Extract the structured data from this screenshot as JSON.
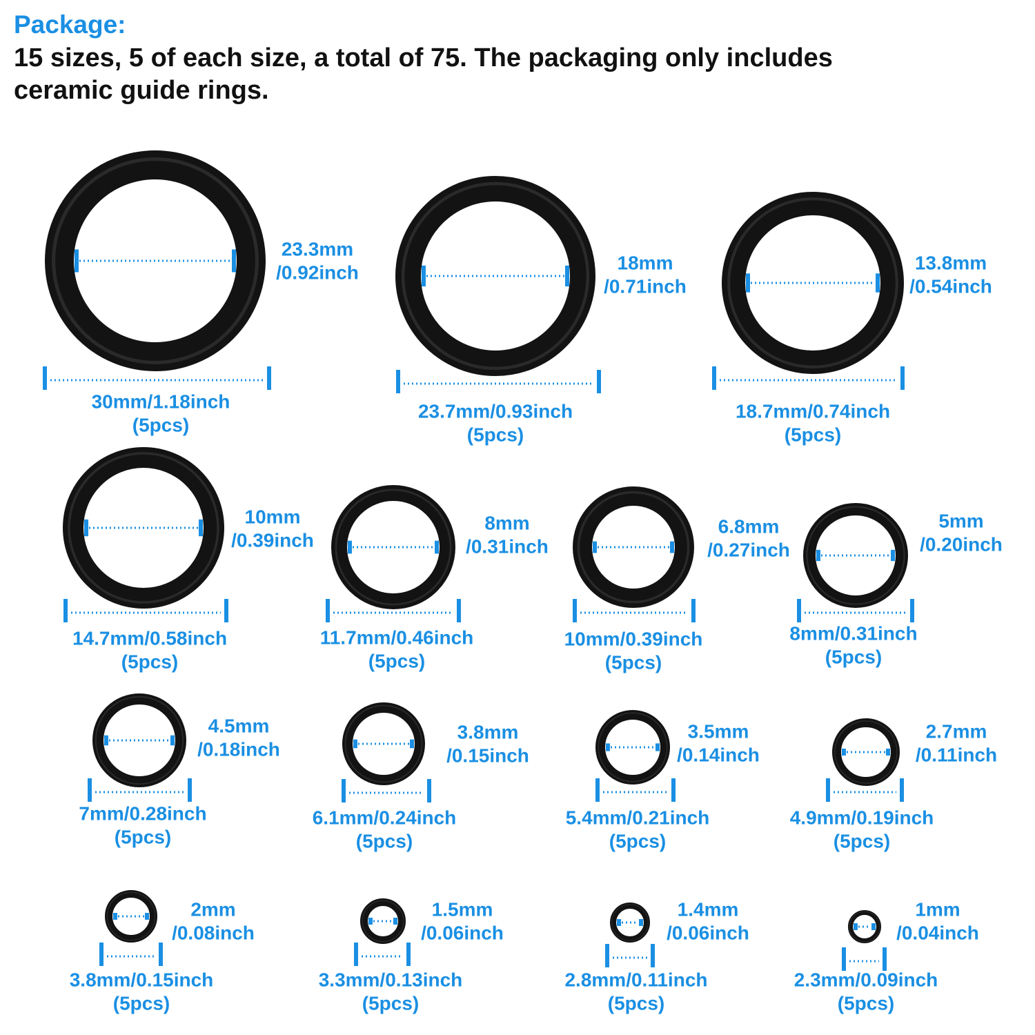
{
  "header": {
    "title": "Package:",
    "description": [
      "15 sizes, 5 of each size, a total of 75. The packaging only includes",
      "ceramic guide rings."
    ]
  },
  "rings": [
    {
      "inner": "23.3mm",
      "inner_inch": "/0.92inch",
      "outer": "30mm/1.18inch",
      "quantity": "(5pcs)"
    },
    {
      "inner": "18mm",
      "inner_inch": "/0.71inch",
      "outer": "23.7mm/0.93inch",
      "quantity": "(5pcs)"
    },
    {
      "inner": "13.8mm",
      "inner_inch": "/0.54inch",
      "outer": "18.7mm/0.74inch",
      "quantity": "(5pcs)"
    },
    {
      "inner": "10mm",
      "inner_inch": "/0.39inch",
      "outer": "14.7mm/0.58inch",
      "quantity": "(5pcs)"
    },
    {
      "inner": "8mm",
      "inner_inch": "/0.31inch",
      "outer": "11.7mm/0.46inch",
      "quantity": "(5pcs)"
    },
    {
      "inner": "6.8mm",
      "inner_inch": "/0.27inch",
      "outer": "10mm/0.39inch",
      "quantity": "(5pcs)"
    },
    {
      "inner": "5mm",
      "inner_inch": "/0.20inch",
      "outer": "8mm/0.31inch",
      "quantity": "(5pcs)"
    },
    {
      "inner": "4.5mm",
      "inner_inch": "/0.18inch",
      "outer": "7mm/0.28inch",
      "quantity": "(5pcs)"
    },
    {
      "inner": "3.8mm",
      "inner_inch": "/0.15inch",
      "outer": "6.1mm/0.24inch",
      "quantity": "(5pcs)"
    },
    {
      "inner": "3.5mm",
      "inner_inch": "/0.14inch",
      "outer": "5.4mm/0.21inch",
      "quantity": "(5pcs)"
    },
    {
      "inner": "2.7mm",
      "inner_inch": "/0.11inch",
      "outer": "4.9mm/0.19inch",
      "quantity": "(5pcs)"
    },
    {
      "inner": "2mm",
      "inner_inch": "/0.08inch",
      "outer": "3.8mm/0.15inch",
      "quantity": "(5pcs)"
    },
    {
      "inner": "1.5mm",
      "inner_inch": "/0.06inch",
      "outer": "3.3mm/0.13inch",
      "quantity": "(5pcs)"
    },
    {
      "inner": "1.4mm",
      "inner_inch": "/0.06inch",
      "outer": "2.8mm/0.11inch",
      "quantity": "(5pcs)"
    },
    {
      "inner": "1mm",
      "inner_inch": "/0.04inch",
      "outer": "2.3mm/0.09inch",
      "quantity": "(5pcs)"
    }
  ]
}
